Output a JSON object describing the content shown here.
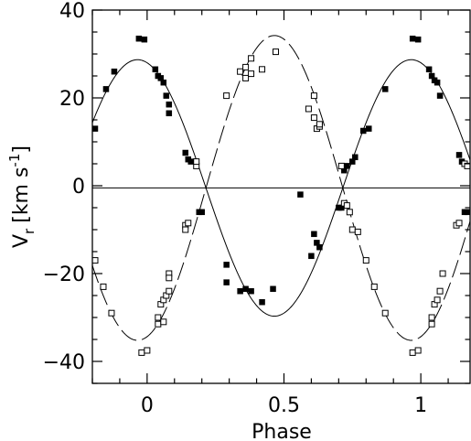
{
  "chart_data": {
    "type": "scatter",
    "title": "",
    "xlabel": "Phase",
    "ylabel": {
      "symbol": "V",
      "subscript": "r",
      "unit_text": "[km s",
      "unit_exp": "-1",
      "unit_close": "]"
    },
    "xlim": [
      -0.2,
      1.18
    ],
    "ylim": [
      -45,
      40
    ],
    "x_ticks": [
      0,
      0.5,
      1
    ],
    "x_tick_labels": [
      "0",
      "0.5",
      "1"
    ],
    "y_ticks": [
      -40,
      -20,
      0,
      20,
      40
    ],
    "y_tick_labels": [
      "−40",
      "−20",
      "0",
      "20",
      "40"
    ],
    "grid": false,
    "legend": "none",
    "zero_line": -0.5,
    "curves": [
      {
        "style": "solid",
        "gamma": -0.5,
        "amplitude": 29.2,
        "phase_max": -0.035
      },
      {
        "style": "dashed",
        "gamma": -0.5,
        "amplitude": 34.7,
        "phase_max": 0.465
      }
    ],
    "series": [
      {
        "marker": "filled-square",
        "color": "#000000",
        "points": [
          [
            -0.19,
            13
          ],
          [
            -0.15,
            22
          ],
          [
            -0.12,
            26
          ],
          [
            -0.03,
            33.5
          ],
          [
            -0.01,
            33.3
          ],
          [
            0.03,
            26.5
          ],
          [
            0.04,
            25
          ],
          [
            0.05,
            24.5
          ],
          [
            0.06,
            23.5
          ],
          [
            0.07,
            20.5
          ],
          [
            0.08,
            18.5
          ],
          [
            0.08,
            16.5
          ],
          [
            0.14,
            7.5
          ],
          [
            0.15,
            6
          ],
          [
            0.16,
            5.5
          ],
          [
            0.19,
            -6
          ],
          [
            0.2,
            -6
          ],
          [
            0.29,
            -18
          ],
          [
            0.29,
            -22
          ],
          [
            0.34,
            -24
          ],
          [
            0.36,
            -23.5
          ],
          [
            0.38,
            -24
          ],
          [
            0.42,
            -26.5
          ],
          [
            0.46,
            -23.5
          ],
          [
            0.56,
            -2
          ],
          [
            0.6,
            -16
          ],
          [
            0.61,
            -11
          ],
          [
            0.62,
            -13
          ],
          [
            0.63,
            -14
          ],
          [
            0.7,
            -5
          ],
          [
            0.71,
            -5
          ],
          [
            0.72,
            3.5
          ],
          [
            0.73,
            4.5
          ],
          [
            0.75,
            5.5
          ],
          [
            0.76,
            6.5
          ],
          [
            0.79,
            12.5
          ],
          [
            0.81,
            13
          ],
          [
            0.87,
            22
          ],
          [
            0.97,
            33.5
          ],
          [
            0.99,
            33.3
          ],
          [
            1.03,
            26.5
          ],
          [
            1.04,
            25
          ],
          [
            1.05,
            24
          ],
          [
            1.06,
            23.5
          ],
          [
            1.07,
            20.5
          ],
          [
            1.14,
            7
          ],
          [
            1.15,
            5.5
          ],
          [
            1.16,
            -6
          ],
          [
            1.17,
            -6
          ]
        ]
      },
      {
        "marker": "open-square",
        "color": "#000000",
        "points": [
          [
            -0.19,
            -17
          ],
          [
            -0.16,
            -23
          ],
          [
            -0.13,
            -29
          ],
          [
            -0.02,
            -38
          ],
          [
            0.0,
            -37.5
          ],
          [
            0.04,
            -30
          ],
          [
            0.04,
            -31.5
          ],
          [
            0.05,
            -27
          ],
          [
            0.06,
            -26
          ],
          [
            0.06,
            -31
          ],
          [
            0.07,
            -25
          ],
          [
            0.08,
            -24
          ],
          [
            0.08,
            -20
          ],
          [
            0.08,
            -21
          ],
          [
            0.14,
            -9
          ],
          [
            0.14,
            -10
          ],
          [
            0.15,
            -8.5
          ],
          [
            0.18,
            4.5
          ],
          [
            0.18,
            5.5
          ],
          [
            0.29,
            20.5
          ],
          [
            0.34,
            26
          ],
          [
            0.36,
            24.5
          ],
          [
            0.36,
            27
          ],
          [
            0.38,
            25.5
          ],
          [
            0.38,
            29
          ],
          [
            0.42,
            26.5
          ],
          [
            0.47,
            30.5
          ],
          [
            0.59,
            17.5
          ],
          [
            0.61,
            20.5
          ],
          [
            0.61,
            15.5
          ],
          [
            0.62,
            13
          ],
          [
            0.63,
            13.5
          ],
          [
            0.63,
            14
          ],
          [
            0.71,
            4.5
          ],
          [
            0.72,
            -4
          ],
          [
            0.73,
            -4.5
          ],
          [
            0.74,
            -6
          ],
          [
            0.75,
            -10
          ],
          [
            0.77,
            -10.5
          ],
          [
            0.8,
            -17
          ],
          [
            0.83,
            -23
          ],
          [
            0.87,
            -29
          ],
          [
            0.97,
            -38
          ],
          [
            0.99,
            -37.5
          ],
          [
            1.04,
            -30
          ],
          [
            1.04,
            -31.5
          ],
          [
            1.05,
            -27
          ],
          [
            1.06,
            -26
          ],
          [
            1.07,
            -24
          ],
          [
            1.08,
            -20
          ],
          [
            1.13,
            -9
          ],
          [
            1.14,
            -8.5
          ],
          [
            1.16,
            5
          ],
          [
            1.17,
            4.5
          ]
        ]
      }
    ]
  }
}
